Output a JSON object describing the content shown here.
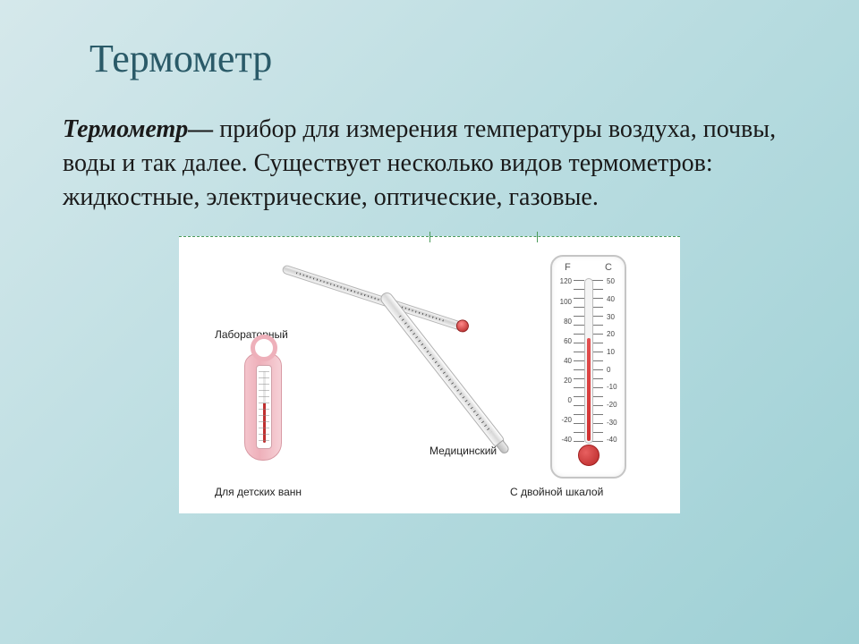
{
  "title": "Термометр",
  "term": "Термометр—",
  "definition": " прибор для измерения температуры воздуха, почвы, воды и так далее. Существует несколько видов термометров: жидкостные, электрические, оптические, газовые.",
  "labels": {
    "laboratory": "Лабораторный",
    "medical": "Медицинский",
    "bath": "Для детских ванн",
    "dual": "С двойной шкалой"
  },
  "dual_scale": {
    "unit_f": "F",
    "unit_c": "C",
    "f_ticks": [
      "120",
      "100",
      "80",
      "60",
      "40",
      "20",
      "0",
      "-20",
      "-40"
    ],
    "c_ticks": [
      "50",
      "40",
      "30",
      "20",
      "10",
      "0",
      "-10",
      "-20",
      "-30",
      "-40"
    ]
  },
  "styling": {
    "background_gradient": [
      "#d5e8eb",
      "#b8dce0",
      "#9ed0d5"
    ],
    "title_color": "#2a5a68",
    "title_fontsize": 44,
    "body_fontsize": 28,
    "body_color": "#1a1a1a",
    "figure_bg": "#ffffff",
    "figure_width": 560,
    "figure_height": 310,
    "dashed_border_color": "#4a9a5a",
    "label_fontsize": 12,
    "bath_color": "#eeb0ba",
    "fluid_color": "#d03030",
    "glass_border": "#b5b5b5"
  }
}
